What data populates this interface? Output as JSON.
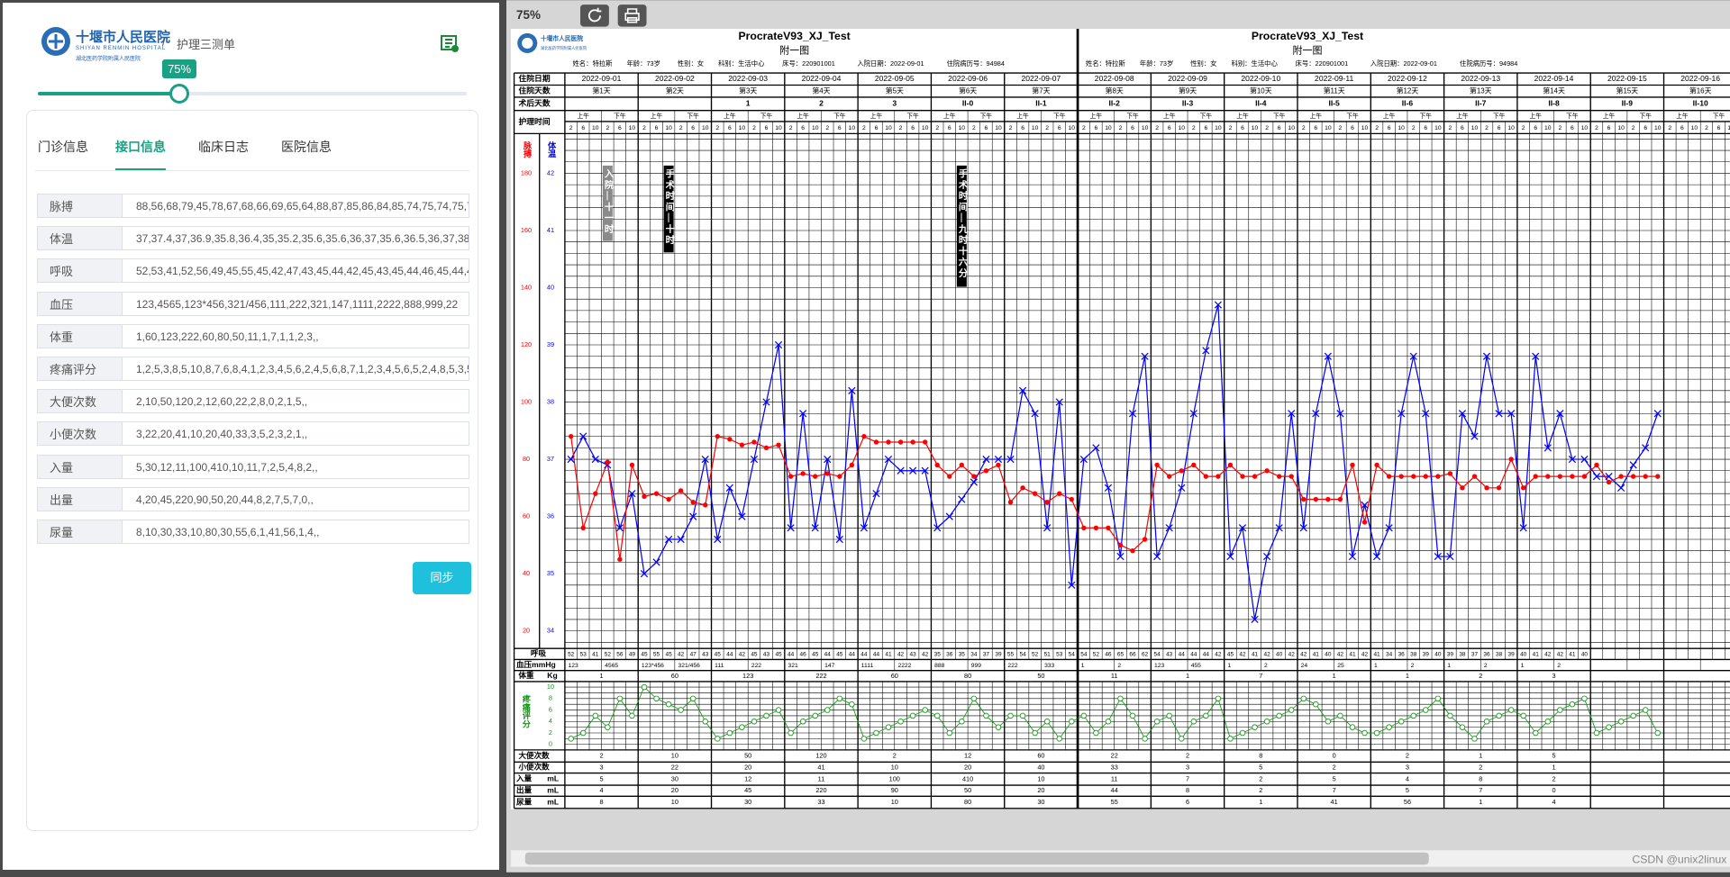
{
  "header": {
    "hospital_name": "十堰市人民医院",
    "hospital_en": "SHIYAN RENMIN HOSPITAL",
    "hospital_sub": "湖北医药学院附属人民医院",
    "separator": "/",
    "breadcrumb": "护理三测单"
  },
  "zoom_slider": {
    "label": "75%",
    "value": 75
  },
  "tabs": [
    "门诊信息",
    "接口信息",
    "临床日志",
    "医院信息"
  ],
  "active_tab": 1,
  "fields": [
    {
      "label": "脉搏",
      "value": "88,56,68,79,45,78,67,68,66,69,65,64,88,87,85,86,84,85,74,75,74,75,7"
    },
    {
      "label": "体温",
      "value": "37,37.4,37,36.9,35.8,36.4,35,35.2,35.6,35.6,36,37,35.6,36.5,36,37,38"
    },
    {
      "label": "呼吸",
      "value": "52,53,41,52,56,49,45,55,45,42,47,43,45,44,42,45,43,45,44,46,45,44,45,4"
    },
    {
      "label": "血压",
      "value": "123,4565,123*456,321/456,111,222,321,147,1111,2222,888,999,22"
    },
    {
      "label": "体重",
      "value": "1,60,123,222,60,80,50,11,1,7,1,1,2,3,,"
    },
    {
      "label": "疼痛评分",
      "value": "1,2,5,3,8,5,10,8,7,6,8,4,1,2,3,4,5,6,2,4,5,6,8,7,1,2,3,4,5,6,5,2,4,8,5,3,5,5,"
    },
    {
      "label": "大便次数",
      "value": "2,10,50,120,2,12,60,22,2,8,0,2,1,5,,"
    },
    {
      "label": "小便次数",
      "value": "3,22,20,41,10,20,40,33,3,5,2,3,2,1,,"
    },
    {
      "label": "入量",
      "value": "5,30,12,11,100,410,10,11,7,2,5,4,8,2,,"
    },
    {
      "label": "出量",
      "value": "4,20,45,220,90,50,20,44,8,2,7,5,7,0,,"
    },
    {
      "label": "尿量",
      "value": "8,10,30,33,10,80,30,55,6,1,41,56,1,4,,"
    }
  ],
  "sync_button": "同步",
  "viewer": {
    "zoom": "75%",
    "watermark": "CSDN @unix2linux"
  },
  "sheet": {
    "title": "ProcrateV93_XJ_Test",
    "subtitle": "附一图",
    "patient": [
      "姓名：特拉斯",
      "年龄：73岁",
      "性别：女",
      "科别：生活中心",
      "床号：220901001",
      "入院日期：2022-09-01",
      "住院病历号：94984"
    ],
    "row_labels": {
      "date": "住院日期",
      "day": "住院天数",
      "postop": "术后天数",
      "time": "护理时间",
      "pulse": "脉搏",
      "temp": "体温",
      "resp": "呼吸",
      "bp": "血压mmHg",
      "weight": "体重",
      "weight_unit": "Kg",
      "pain": "疼痛评分",
      "stool": "大便次数",
      "urine_count": "小便次数",
      "intake": "入量",
      "output": "出量",
      "urine": "尿量",
      "ml": "mL"
    },
    "am": "上午",
    "pm": "下午",
    "hours": [
      2,
      6,
      10,
      2,
      6,
      10
    ],
    "dates": [
      "2022-09-01",
      "2022-09-02",
      "2022-09-03",
      "2022-09-04",
      "2022-09-05",
      "2022-09-06",
      "2022-09-07",
      "2022-09-08",
      "2022-09-09",
      "2022-09-10",
      "2022-09-11",
      "2022-09-12",
      "2022-09-13",
      "2022-09-14",
      "2022-09-15",
      "2022-09-16"
    ],
    "hospital_days": [
      "第1天",
      "第2天",
      "第3天",
      "第4天",
      "第5天",
      "第6天",
      "第7天",
      "第8天",
      "第9天",
      "第10天",
      "第11天",
      "第12天",
      "第13天",
      "第14天",
      "第15天",
      "第16天"
    ],
    "postop_days": [
      null,
      null,
      "1",
      "2",
      "3",
      "II-0",
      "II-1",
      "II-2",
      "II-3",
      "II-4",
      "II-5",
      "II-6",
      "II-7",
      "II-8",
      "II-9",
      "II-10"
    ],
    "pulse": {
      "ylim": [
        20,
        180
      ],
      "yticks": [
        180,
        160,
        140,
        120,
        100,
        80,
        60,
        40,
        20
      ],
      "color": "#ff0000",
      "values": [
        88,
        56,
        68,
        79,
        45,
        78,
        67,
        68,
        66,
        69,
        65,
        64,
        88,
        87,
        85,
        86,
        84,
        85,
        74,
        75,
        74,
        75,
        74,
        78,
        88,
        86,
        86,
        86,
        86,
        86,
        78,
        74,
        78,
        74,
        76,
        78,
        65,
        70,
        68,
        65,
        68,
        66,
        56,
        56,
        56,
        50,
        48,
        52,
        78,
        74,
        76,
        78,
        74,
        74,
        78,
        74,
        74,
        76,
        74,
        74,
        66,
        66,
        66,
        66,
        78,
        58,
        78,
        74,
        74,
        74,
        74,
        74,
        75,
        70,
        74,
        70,
        70,
        80,
        70,
        74,
        74,
        74,
        74,
        74,
        78,
        72,
        74,
        74,
        74,
        74
      ]
    },
    "temp": {
      "ylim": [
        34,
        42
      ],
      "yticks": [
        42,
        41,
        40,
        39,
        38,
        37,
        36,
        35,
        34
      ],
      "color": "#0000ff",
      "values": [
        37,
        37.4,
        37,
        36.9,
        35.8,
        36.4,
        35,
        35.2,
        35.6,
        35.6,
        36,
        37,
        35.6,
        36.5,
        36,
        37,
        38,
        39,
        35.8,
        37.8,
        35.8,
        37,
        35.6,
        38.2,
        35.8,
        36.4,
        37,
        36.8,
        36.8,
        36.8,
        35.8,
        36,
        36.3,
        36.6,
        37,
        37,
        37,
        38.2,
        37.8,
        35.8,
        38,
        34.8,
        37,
        37.2,
        36.5,
        35.3,
        37.8,
        38.8,
        35.3,
        35.8,
        36.5,
        37.8,
        38.9,
        39.7,
        35.3,
        35.8,
        34.2,
        35.3,
        35.8,
        37.8,
        35.8,
        37.8,
        38.8,
        37.8,
        35.3,
        36.2,
        35.3,
        35.8,
        37.8,
        38.8,
        37.8,
        35.3,
        35.3,
        37.8,
        37.4,
        38.8,
        37.8,
        37.8,
        35.8,
        38.8,
        37.2,
        37.8,
        37,
        37,
        36.7,
        36.7,
        36.5,
        36.9,
        37.2,
        37.8
      ]
    },
    "pain": {
      "ylim": [
        0,
        10
      ],
      "yticks": [
        10,
        8,
        6,
        4,
        2,
        0
      ],
      "color": "#0a9a0a",
      "values": [
        1,
        2,
        5,
        3,
        8,
        5,
        10,
        8,
        7,
        6,
        8,
        4,
        1,
        2,
        3,
        4,
        5,
        6,
        2,
        4,
        5,
        6,
        8,
        7,
        1,
        2,
        3,
        4,
        5,
        6,
        5,
        2,
        4,
        8,
        5,
        3,
        5,
        5,
        2,
        4,
        1,
        4,
        5,
        2,
        4,
        8,
        5,
        1,
        4,
        5,
        1,
        4,
        5,
        8,
        1,
        2,
        3,
        4,
        5,
        6,
        8,
        7,
        4,
        5,
        3,
        2,
        2,
        3,
        4,
        5,
        6,
        8,
        5,
        3,
        1,
        4,
        5,
        6,
        5,
        2,
        4,
        6,
        7,
        8,
        2,
        3,
        4,
        5,
        6,
        2
      ]
    },
    "resp": [
      52,
      53,
      41,
      52,
      56,
      49,
      45,
      55,
      45,
      42,
      47,
      43,
      45,
      44,
      42,
      45,
      43,
      45,
      44,
      46,
      45,
      44,
      45,
      44,
      44,
      44,
      41,
      42,
      43,
      42,
      35,
      36,
      35,
      34,
      37,
      39,
      55,
      54,
      52,
      51,
      53,
      54,
      54,
      52,
      46,
      65,
      66,
      62,
      54,
      43,
      44,
      44,
      44,
      42,
      45,
      42,
      41,
      42,
      40,
      42,
      42,
      41,
      40,
      42,
      41,
      42,
      41,
      34,
      36,
      38,
      39,
      40,
      39,
      38,
      37,
      36,
      38,
      39,
      40,
      41,
      42,
      42,
      41,
      40
    ],
    "bp": [
      [
        "123",
        "4565"
      ],
      [
        "123*456",
        "321/456"
      ],
      [
        "111",
        "222"
      ],
      [
        "321",
        "147"
      ],
      [
        "1111",
        "2222"
      ],
      [
        "888",
        "999"
      ],
      [
        "222",
        "333"
      ],
      [
        "1",
        "2"
      ],
      [
        "123",
        "455"
      ],
      [
        "1",
        "2"
      ],
      [
        "24",
        "25"
      ],
      [
        "1",
        "2"
      ],
      [
        "1",
        "2"
      ],
      [
        "1",
        "2"
      ]
    ],
    "weight": [
      1,
      60,
      123,
      222,
      60,
      80,
      50,
      11,
      1,
      7,
      1,
      1,
      2,
      3
    ],
    "stool": [
      2,
      10,
      50,
      120,
      2,
      12,
      60,
      22,
      2,
      8,
      0,
      2,
      1,
      5
    ],
    "urine_count": [
      3,
      22,
      20,
      41,
      10,
      20,
      40,
      33,
      3,
      5,
      2,
      3,
      2,
      1
    ],
    "intake": [
      5,
      30,
      12,
      11,
      100,
      410,
      10,
      11,
      7,
      2,
      5,
      4,
      8,
      2
    ],
    "output": [
      4,
      20,
      45,
      220,
      90,
      50,
      20,
      44,
      8,
      2,
      7,
      5,
      7,
      0
    ],
    "urine": [
      8,
      10,
      30,
      33,
      10,
      80,
      30,
      55,
      6,
      1,
      41,
      56,
      1,
      4
    ],
    "annotations": [
      {
        "slot": 3,
        "text": "入院—十一时",
        "style": "gray"
      },
      {
        "slot": 8,
        "text": "手术时间—十时",
        "style": "black"
      },
      {
        "slot": 32,
        "text": "手术时间—九时十六分",
        "style": "black"
      }
    ]
  }
}
